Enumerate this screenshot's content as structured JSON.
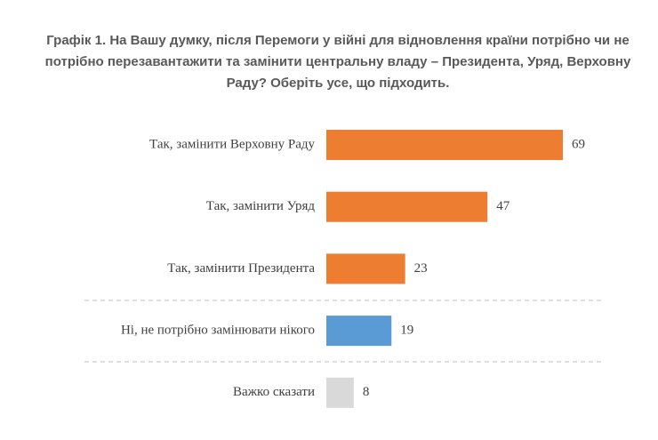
{
  "chart_data": {
    "type": "bar",
    "orientation": "horizontal",
    "title": "Графік 1. На Вашу думку, після Перемоги у війні для відновлення країни потрібно чи не потрібно перезавантажити та замінити центральну владу – Президента, Уряд, Верховну Раду? Оберіть усе, що підходить.",
    "categories": [
      "Так, замінити Верховну Раду",
      "Так, замінити Уряд",
      "Так, замінити Президента",
      "Ні, не потрібно замінювати нікого",
      "Важко сказати"
    ],
    "values": [
      69,
      47,
      23,
      19,
      8
    ],
    "colors": [
      "#ed7d31",
      "#ed7d31",
      "#ed7d31",
      "#5b9bd5",
      "#d9d9d9"
    ]
  }
}
